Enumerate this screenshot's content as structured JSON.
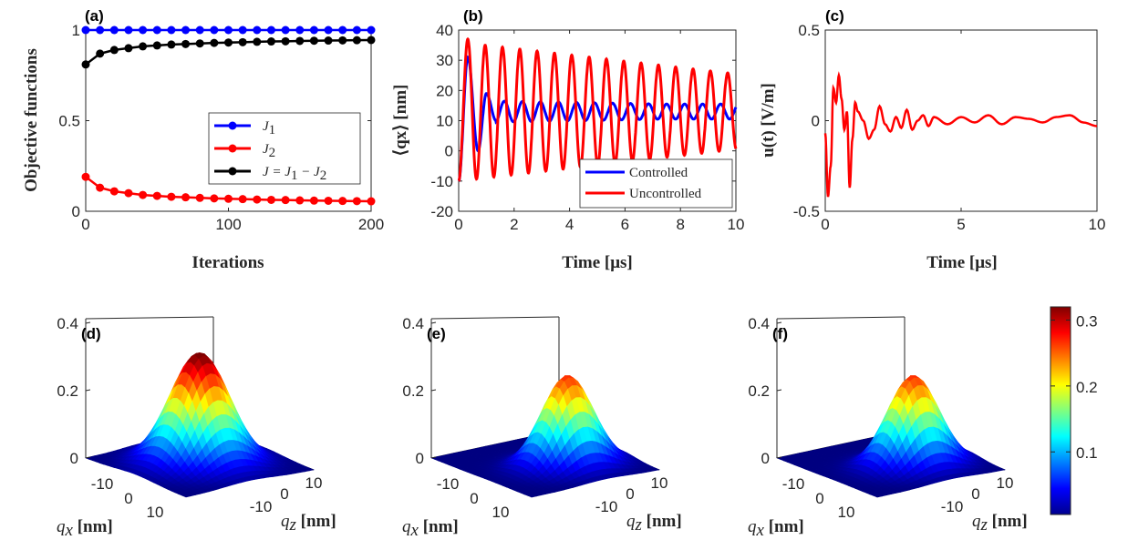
{
  "chart_data": [
    {
      "id": "a",
      "type": "line",
      "panel_label": "(a)",
      "xlabel": "Iterations",
      "ylabel": "Objective functions",
      "xlim": [
        0,
        200
      ],
      "ylim": [
        0,
        1
      ],
      "xticks": [
        "0",
        "100",
        "200"
      ],
      "yticks": [
        "0",
        "0.5",
        "1"
      ],
      "legend_position": "center-right",
      "series": [
        {
          "name": "J1",
          "legend": {
            "base": "J",
            "sub": "1"
          },
          "color": "#0000ff",
          "x": [
            0,
            10,
            20,
            30,
            40,
            50,
            60,
            70,
            80,
            90,
            100,
            110,
            120,
            130,
            140,
            150,
            160,
            170,
            180,
            190,
            200
          ],
          "values": [
            1,
            1,
            1,
            1,
            1,
            1,
            1,
            1,
            1,
            1,
            1,
            1,
            1,
            1,
            1,
            1,
            1,
            1,
            1,
            1,
            1
          ]
        },
        {
          "name": "J2",
          "legend": {
            "base": "J",
            "sub": "2"
          },
          "color": "#ff0000",
          "x": [
            0,
            10,
            20,
            30,
            40,
            50,
            60,
            70,
            80,
            90,
            100,
            110,
            120,
            130,
            140,
            150,
            160,
            170,
            180,
            190,
            200
          ],
          "values": [
            0.19,
            0.13,
            0.11,
            0.1,
            0.09,
            0.085,
            0.08,
            0.077,
            0.074,
            0.071,
            0.069,
            0.067,
            0.065,
            0.063,
            0.062,
            0.06,
            0.059,
            0.058,
            0.057,
            0.056,
            0.055
          ]
        },
        {
          "name": "J = J1 - J2",
          "legend": {
            "base": "J = J",
            "sub1": "1",
            "mid": " − J",
            "sub2": "2"
          },
          "color": "#000000",
          "x": [
            0,
            10,
            20,
            30,
            40,
            50,
            60,
            70,
            80,
            90,
            100,
            110,
            120,
            130,
            140,
            150,
            160,
            170,
            180,
            190,
            200
          ],
          "values": [
            0.81,
            0.87,
            0.89,
            0.9,
            0.91,
            0.915,
            0.92,
            0.923,
            0.926,
            0.929,
            0.931,
            0.933,
            0.935,
            0.937,
            0.938,
            0.94,
            0.941,
            0.942,
            0.943,
            0.944,
            0.945
          ]
        }
      ]
    },
    {
      "id": "b",
      "type": "line",
      "panel_label": "(b)",
      "xlabel": "Time [μs]",
      "ylabel": "⟨qx⟩ [nm]",
      "xlim": [
        0,
        10
      ],
      "ylim": [
        -20,
        40
      ],
      "xticks": [
        "0",
        "2",
        "4",
        "6",
        "8",
        "10"
      ],
      "yticks": [
        "-20",
        "-10",
        "0",
        "10",
        "20",
        "30",
        "40"
      ],
      "legend_position": "bottom-right",
      "series": [
        {
          "name": "Controlled",
          "color": "#0000ff",
          "model": {
            "offset": 13,
            "period": 0.65,
            "initial_value": -10,
            "peaks": [
              [
                0.33,
                31
              ],
              [
                1.0,
                19
              ],
              [
                1.6,
                16.5
              ],
              [
                2.3,
                17
              ],
              [
                3.0,
                16.5
              ]
            ],
            "late_amplitude": 2.5
          }
        },
        {
          "name": "Uncontrolled",
          "color": "#ff0000",
          "model": {
            "offset": 13,
            "period": 0.625,
            "amplitude_start": 23,
            "amplitude_end": 12.5,
            "initial_value": -10,
            "first_peak": [
              0.33,
              37
            ]
          }
        }
      ]
    },
    {
      "id": "c",
      "type": "line",
      "panel_label": "(c)",
      "xlabel": "Time [μs]",
      "ylabel": "u(t) [V/m]",
      "xlim": [
        0,
        10
      ],
      "ylim": [
        -0.5,
        0.5
      ],
      "xticks": [
        "0",
        "5",
        "10"
      ],
      "yticks": [
        "-0.5",
        "0",
        "0.5"
      ],
      "series": [
        {
          "name": "u(t)",
          "color": "#ff0000",
          "x": [
            0,
            0.1,
            0.2,
            0.3,
            0.4,
            0.5,
            0.6,
            0.7,
            0.8,
            0.9,
            1.0,
            1.1,
            1.2,
            1.4,
            1.6,
            1.8,
            2.0,
            2.2,
            2.4,
            2.6,
            2.8,
            3.0,
            3.2,
            3.4,
            3.6,
            3.8,
            4.0,
            4.5,
            5.0,
            5.5,
            6.0,
            6.5,
            7.0,
            7.5,
            8.0,
            8.5,
            9.0,
            9.5,
            10.0
          ],
          "values": [
            -0.07,
            -0.42,
            -0.25,
            0.18,
            0.1,
            0.25,
            0.12,
            -0.05,
            0.05,
            -0.37,
            -0.1,
            0.1,
            0.05,
            0.0,
            -0.1,
            -0.05,
            0.08,
            -0.02,
            -0.06,
            0.02,
            -0.04,
            0.06,
            -0.05,
            0.0,
            0.03,
            -0.03,
            0.02,
            -0.02,
            0.02,
            -0.01,
            0.03,
            -0.02,
            0.02,
            0.01,
            -0.01,
            0.02,
            0.03,
            -0.01,
            -0.03
          ]
        }
      ]
    },
    {
      "id": "d",
      "type": "surface3d",
      "panel_label": "(d)",
      "zticks": [
        "0",
        "0.2",
        "0.4"
      ],
      "xticks": [
        "-10",
        "0",
        "10"
      ],
      "yticks": [
        "-10",
        "0",
        "10"
      ],
      "xlabel": "qx [nm]",
      "ylabel": "qz [nm]",
      "peak": 0.33,
      "shape": "symmetric-gaussian"
    },
    {
      "id": "e",
      "type": "surface3d",
      "panel_label": "(e)",
      "zticks": [
        "0",
        "0.2",
        "0.4"
      ],
      "xticks": [
        "-10",
        "0",
        "10"
      ],
      "yticks": [
        "-10",
        "0",
        "10"
      ],
      "xlabel": "qx [nm]",
      "ylabel": "qz [nm]",
      "peak": 0.27,
      "shape": "gaussian-shifted"
    },
    {
      "id": "f",
      "type": "surface3d",
      "panel_label": "(f)",
      "zticks": [
        "0",
        "0.2",
        "0.4"
      ],
      "xticks": [
        "-10",
        "0",
        "10"
      ],
      "yticks": [
        "-10",
        "0",
        "10"
      ],
      "xlabel": "qx [nm]",
      "ylabel": "qz [nm]",
      "peak": 0.27,
      "shape": "gaussian-shifted"
    },
    {
      "id": "colorbar",
      "type": "colorbar",
      "colormap": "jet",
      "range": [
        0.005,
        0.32
      ],
      "ticks": [
        "0.1",
        "0.2",
        "0.3"
      ],
      "tick_values": [
        0.1,
        0.2,
        0.3
      ]
    }
  ]
}
